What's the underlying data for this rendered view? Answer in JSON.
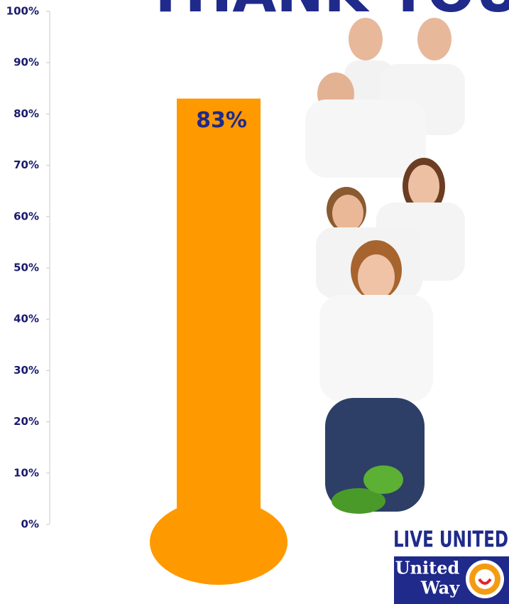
{
  "chart_data": {
    "type": "thermometer",
    "title": "THANK YOU",
    "values": [
      83
    ],
    "value_labels": [
      "83%"
    ],
    "color": "#ff9900",
    "ylim": [
      0,
      100
    ],
    "yticks": [
      {
        "value": 0,
        "label": "0%"
      },
      {
        "value": 10,
        "label": "10%"
      },
      {
        "value": 20,
        "label": "20%"
      },
      {
        "value": 30,
        "label": "30%"
      },
      {
        "value": 40,
        "label": "40%"
      },
      {
        "value": 50,
        "label": "50%"
      },
      {
        "value": 60,
        "label": "60%"
      },
      {
        "value": 70,
        "label": "70%"
      },
      {
        "value": 80,
        "label": "80%"
      },
      {
        "value": 90,
        "label": "90%"
      },
      {
        "value": 100,
        "label": "100%"
      }
    ]
  },
  "logo": {
    "tagline": "LIVE UNITED",
    "name_line1": "United",
    "name_line2": "Way"
  }
}
